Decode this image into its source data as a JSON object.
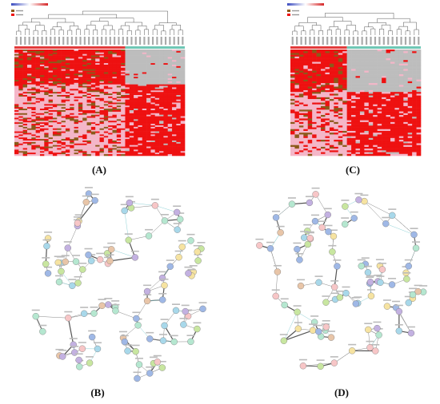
{
  "figure": {
    "panels": [
      {
        "id": "A",
        "label": "(A)",
        "kind": "heatmap",
        "legend_items": 2
      },
      {
        "id": "C",
        "label": "(C)",
        "kind": "heatmap",
        "legend_items": 2
      },
      {
        "id": "B",
        "label": "(B)",
        "kind": "network"
      },
      {
        "id": "D",
        "label": "(D)",
        "kind": "network"
      }
    ]
  },
  "colors": {
    "present": "#ee1111",
    "absent": "#bdbdbd",
    "pink": "#f4b6c8",
    "brown": "#8b5a1a",
    "group_bar_a": "#e33a3a",
    "group_bar_b": "#6fc7b5",
    "scale_low": "#3b4cc0",
    "scale_high": "#d62728",
    "edge": "#888888",
    "node_palette": [
      "#c8e6a0",
      "#a8d8ea",
      "#f7c6c7",
      "#c3b1e1",
      "#f6e3a1",
      "#b5e7d0",
      "#9fb8e6",
      "#e8c5a8"
    ]
  }
}
